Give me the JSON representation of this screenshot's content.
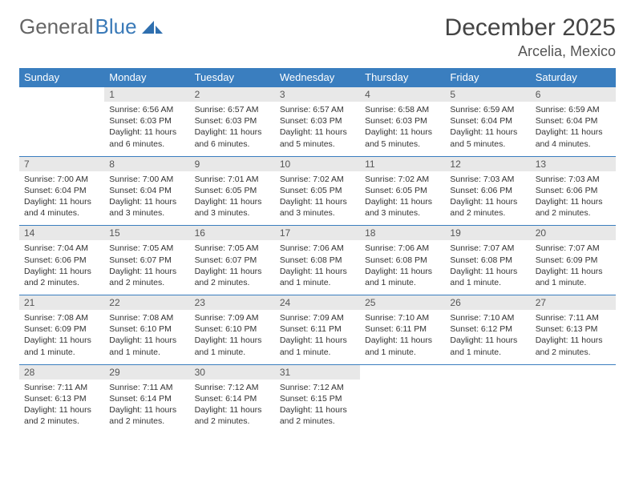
{
  "logo": {
    "text_a": "General",
    "text_b": "Blue"
  },
  "title": "December 2025",
  "location": "Arcelia, Mexico",
  "colors": {
    "header_bg": "#3a7ebf",
    "header_text": "#ffffff",
    "daynum_bg": "#e8e8e8",
    "rule": "#3a7ebf",
    "logo_gray": "#666666",
    "logo_blue": "#3a7ab8"
  },
  "dow": [
    "Sunday",
    "Monday",
    "Tuesday",
    "Wednesday",
    "Thursday",
    "Friday",
    "Saturday"
  ],
  "weeks": [
    [
      {
        "n": "",
        "lines": []
      },
      {
        "n": "1",
        "lines": [
          "Sunrise: 6:56 AM",
          "Sunset: 6:03 PM",
          "Daylight: 11 hours and 6 minutes."
        ]
      },
      {
        "n": "2",
        "lines": [
          "Sunrise: 6:57 AM",
          "Sunset: 6:03 PM",
          "Daylight: 11 hours and 6 minutes."
        ]
      },
      {
        "n": "3",
        "lines": [
          "Sunrise: 6:57 AM",
          "Sunset: 6:03 PM",
          "Daylight: 11 hours and 5 minutes."
        ]
      },
      {
        "n": "4",
        "lines": [
          "Sunrise: 6:58 AM",
          "Sunset: 6:03 PM",
          "Daylight: 11 hours and 5 minutes."
        ]
      },
      {
        "n": "5",
        "lines": [
          "Sunrise: 6:59 AM",
          "Sunset: 6:04 PM",
          "Daylight: 11 hours and 5 minutes."
        ]
      },
      {
        "n": "6",
        "lines": [
          "Sunrise: 6:59 AM",
          "Sunset: 6:04 PM",
          "Daylight: 11 hours and 4 minutes."
        ]
      }
    ],
    [
      {
        "n": "7",
        "lines": [
          "Sunrise: 7:00 AM",
          "Sunset: 6:04 PM",
          "Daylight: 11 hours and 4 minutes."
        ]
      },
      {
        "n": "8",
        "lines": [
          "Sunrise: 7:00 AM",
          "Sunset: 6:04 PM",
          "Daylight: 11 hours and 3 minutes."
        ]
      },
      {
        "n": "9",
        "lines": [
          "Sunrise: 7:01 AM",
          "Sunset: 6:05 PM",
          "Daylight: 11 hours and 3 minutes."
        ]
      },
      {
        "n": "10",
        "lines": [
          "Sunrise: 7:02 AM",
          "Sunset: 6:05 PM",
          "Daylight: 11 hours and 3 minutes."
        ]
      },
      {
        "n": "11",
        "lines": [
          "Sunrise: 7:02 AM",
          "Sunset: 6:05 PM",
          "Daylight: 11 hours and 3 minutes."
        ]
      },
      {
        "n": "12",
        "lines": [
          "Sunrise: 7:03 AM",
          "Sunset: 6:06 PM",
          "Daylight: 11 hours and 2 minutes."
        ]
      },
      {
        "n": "13",
        "lines": [
          "Sunrise: 7:03 AM",
          "Sunset: 6:06 PM",
          "Daylight: 11 hours and 2 minutes."
        ]
      }
    ],
    [
      {
        "n": "14",
        "lines": [
          "Sunrise: 7:04 AM",
          "Sunset: 6:06 PM",
          "Daylight: 11 hours and 2 minutes."
        ]
      },
      {
        "n": "15",
        "lines": [
          "Sunrise: 7:05 AM",
          "Sunset: 6:07 PM",
          "Daylight: 11 hours and 2 minutes."
        ]
      },
      {
        "n": "16",
        "lines": [
          "Sunrise: 7:05 AM",
          "Sunset: 6:07 PM",
          "Daylight: 11 hours and 2 minutes."
        ]
      },
      {
        "n": "17",
        "lines": [
          "Sunrise: 7:06 AM",
          "Sunset: 6:08 PM",
          "Daylight: 11 hours and 1 minute."
        ]
      },
      {
        "n": "18",
        "lines": [
          "Sunrise: 7:06 AM",
          "Sunset: 6:08 PM",
          "Daylight: 11 hours and 1 minute."
        ]
      },
      {
        "n": "19",
        "lines": [
          "Sunrise: 7:07 AM",
          "Sunset: 6:08 PM",
          "Daylight: 11 hours and 1 minute."
        ]
      },
      {
        "n": "20",
        "lines": [
          "Sunrise: 7:07 AM",
          "Sunset: 6:09 PM",
          "Daylight: 11 hours and 1 minute."
        ]
      }
    ],
    [
      {
        "n": "21",
        "lines": [
          "Sunrise: 7:08 AM",
          "Sunset: 6:09 PM",
          "Daylight: 11 hours and 1 minute."
        ]
      },
      {
        "n": "22",
        "lines": [
          "Sunrise: 7:08 AM",
          "Sunset: 6:10 PM",
          "Daylight: 11 hours and 1 minute."
        ]
      },
      {
        "n": "23",
        "lines": [
          "Sunrise: 7:09 AM",
          "Sunset: 6:10 PM",
          "Daylight: 11 hours and 1 minute."
        ]
      },
      {
        "n": "24",
        "lines": [
          "Sunrise: 7:09 AM",
          "Sunset: 6:11 PM",
          "Daylight: 11 hours and 1 minute."
        ]
      },
      {
        "n": "25",
        "lines": [
          "Sunrise: 7:10 AM",
          "Sunset: 6:11 PM",
          "Daylight: 11 hours and 1 minute."
        ]
      },
      {
        "n": "26",
        "lines": [
          "Sunrise: 7:10 AM",
          "Sunset: 6:12 PM",
          "Daylight: 11 hours and 1 minute."
        ]
      },
      {
        "n": "27",
        "lines": [
          "Sunrise: 7:11 AM",
          "Sunset: 6:13 PM",
          "Daylight: 11 hours and 2 minutes."
        ]
      }
    ],
    [
      {
        "n": "28",
        "lines": [
          "Sunrise: 7:11 AM",
          "Sunset: 6:13 PM",
          "Daylight: 11 hours and 2 minutes."
        ]
      },
      {
        "n": "29",
        "lines": [
          "Sunrise: 7:11 AM",
          "Sunset: 6:14 PM",
          "Daylight: 11 hours and 2 minutes."
        ]
      },
      {
        "n": "30",
        "lines": [
          "Sunrise: 7:12 AM",
          "Sunset: 6:14 PM",
          "Daylight: 11 hours and 2 minutes."
        ]
      },
      {
        "n": "31",
        "lines": [
          "Sunrise: 7:12 AM",
          "Sunset: 6:15 PM",
          "Daylight: 11 hours and 2 minutes."
        ]
      },
      {
        "n": "",
        "lines": []
      },
      {
        "n": "",
        "lines": []
      },
      {
        "n": "",
        "lines": []
      }
    ]
  ]
}
